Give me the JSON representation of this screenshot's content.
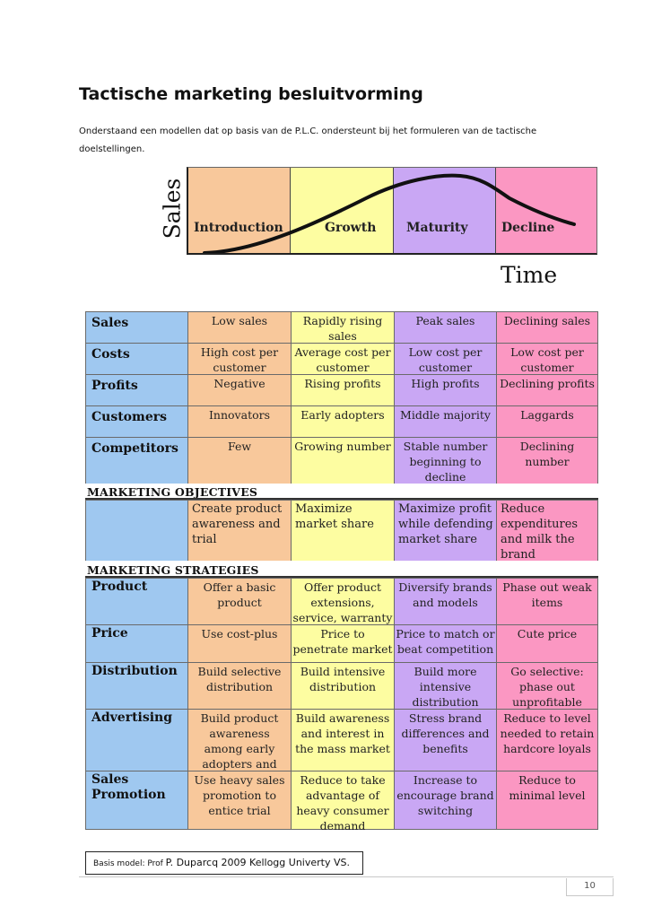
{
  "page": {
    "title": "Tactische marketing besluitvorming",
    "intro": "Onderstaand een modellen dat op basis van de P.L.C. ondersteunt bij het formuleren van de tactische doelstellingen."
  },
  "plc": {
    "y_label": "Sales",
    "x_label": "Time",
    "phases": [
      "Introduction",
      "Growth",
      "Maturity",
      "Decline"
    ],
    "colors": [
      "#f8c89b",
      "#fdfda1",
      "#c9a7f4",
      "#fb97c2"
    ]
  },
  "characteristics": [
    {
      "label": "Sales",
      "cells": [
        "Low sales",
        "Rapidly rising sales",
        "Peak sales",
        "Declining sales"
      ]
    },
    {
      "label": "Costs",
      "cells": [
        "High cost per customer",
        "Average cost per customer",
        "Low cost per customer",
        "Low cost per customer"
      ]
    },
    {
      "label": "Profits",
      "cells": [
        "Negative",
        "Rising profits",
        "High profits",
        "Declining profits"
      ]
    },
    {
      "label": "Customers",
      "cells": [
        "Innovators",
        "Early adopters",
        "Middle majority",
        "Laggards"
      ]
    },
    {
      "label": "Competitors",
      "cells": [
        "Few",
        "Growing number",
        "Stable number beginning to decline",
        "Declining number"
      ]
    }
  ],
  "objectives": {
    "heading": "MARKETING OBJECTIVES",
    "cells": [
      "Create product awareness and trial",
      "Maximize market share",
      "Maximize profit while defending market share",
      "Reduce expenditures and milk the brand"
    ]
  },
  "strategies": {
    "heading": "MARKETING STRATEGIES",
    "rows": [
      {
        "label": "Product",
        "cells": [
          "Offer a basic product",
          "Offer product extensions, service, warranty",
          "Diversify brands and models",
          "Phase out weak items"
        ]
      },
      {
        "label": "Price",
        "cells": [
          "Use cost-plus",
          "Price to penetrate market",
          "Price to match or beat competition",
          "Cute price"
        ]
      },
      {
        "label": "Distribution",
        "cells": [
          "Build selective distribution",
          "Build intensive distribution",
          "Build more intensive distribution",
          "Go selective: phase out unprofitable outlets"
        ]
      },
      {
        "label": "Advertising",
        "cells": [
          "Build product awareness among early adopters and dealers",
          "Build awareness and interest in the mass market",
          "Stress brand differences and benefits",
          "Reduce to level needed to retain hardcore loyals"
        ]
      },
      {
        "label": "Sales Promotion",
        "cells": [
          "Use heavy sales promotion to entice trial",
          "Reduce to take advantage of heavy consumer demand",
          "Increase to encourage brand switching",
          "Reduce to minimal level"
        ]
      }
    ]
  },
  "footnote": {
    "small": "Basis model:  Prof ",
    "big": "P. Duparcq 2009 Kellogg Univerty VS."
  },
  "page_number": "10"
}
